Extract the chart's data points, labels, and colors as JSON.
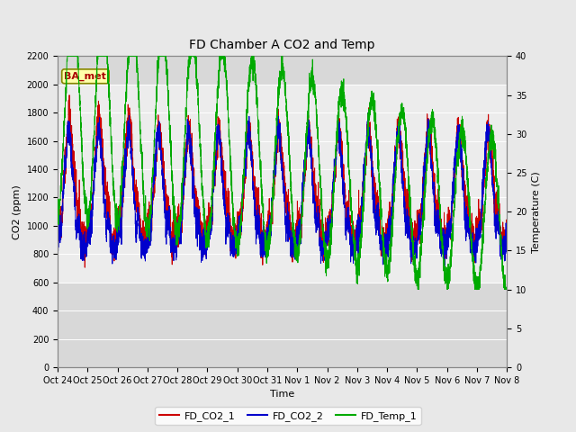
{
  "title": "FD Chamber A CO2 and Temp",
  "xlabel": "Time",
  "ylabel_left": "CO2 (ppm)",
  "ylabel_right": "Temperature (C)",
  "annotation": "BA_met",
  "ylim_left": [
    0,
    2200
  ],
  "ylim_right": [
    0,
    40
  ],
  "yticks_left": [
    0,
    200,
    400,
    600,
    800,
    1000,
    1200,
    1400,
    1600,
    1800,
    2000,
    2200
  ],
  "yticks_right": [
    0,
    5,
    10,
    15,
    20,
    25,
    30,
    35,
    40
  ],
  "legend_labels": [
    "FD_CO2_1",
    "FD_CO2_2",
    "FD_Temp_1"
  ],
  "colors": {
    "co2_1": "#cc0000",
    "co2_2": "#0000cc",
    "temp": "#00aa00"
  },
  "bg_color": "#e8e8e8",
  "plot_bg": "#d8d8d8",
  "shaded_band_low": 600,
  "shaded_band_high": 2000,
  "shaded_band_color": "#f0f0f0",
  "grid_color": "#ffffff",
  "tick_labels": [
    "Oct 24",
    "Oct 25",
    "Oct 26",
    "Oct 27",
    "Oct 28",
    "Oct 29",
    "Oct 30",
    "Oct 31",
    "Nov 1",
    "Nov 2",
    "Nov 3",
    "Nov 4",
    "Nov 5",
    "Nov 6",
    "Nov 7",
    "Nov 8"
  ],
  "num_days": 15,
  "figsize": [
    6.4,
    4.8
  ],
  "dpi": 100,
  "title_fontsize": 10,
  "axis_label_fontsize": 8,
  "tick_fontsize": 7,
  "legend_fontsize": 8
}
